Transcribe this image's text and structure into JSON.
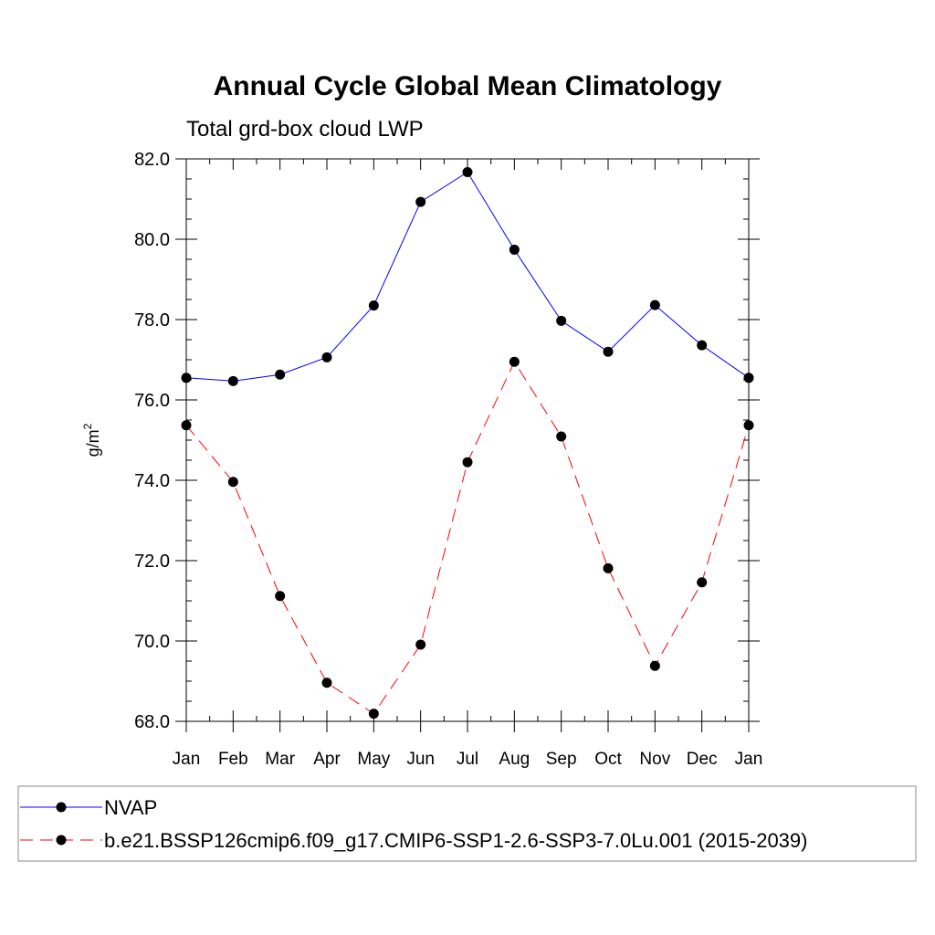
{
  "chart_data": {
    "type": "line",
    "title": "Annual Cycle Global Mean Climatology",
    "subtitle": "Total grd-box cloud LWP",
    "ylabel": "g/m",
    "ylabel_superscript": "2",
    "xlabel": "",
    "categories": [
      "Jan",
      "Feb",
      "Mar",
      "Apr",
      "May",
      "Jun",
      "Jul",
      "Aug",
      "Sep",
      "Oct",
      "Nov",
      "Dec",
      "Jan"
    ],
    "ylim": [
      68.0,
      82.0
    ],
    "yticks": [
      "68.0",
      "70.0",
      "72.0",
      "74.0",
      "76.0",
      "78.0",
      "80.0",
      "82.0"
    ],
    "series": [
      {
        "name": "NVAP",
        "color": "#0000ff",
        "dash": "solid",
        "values": [
          76.55,
          76.47,
          76.63,
          77.06,
          78.35,
          80.93,
          81.67,
          79.74,
          77.97,
          77.2,
          78.36,
          77.36,
          76.55
        ]
      },
      {
        "name": "b.e21.BSSP126cmip6.f09_g17.CMIP6-SSP1-2.6-SSP3-7.0Lu.001 (2015-2039)",
        "color": "#ff0000",
        "dash": "dashed",
        "values": [
          75.37,
          73.96,
          71.12,
          68.96,
          68.19,
          69.91,
          74.45,
          76.95,
          75.09,
          71.81,
          69.38,
          71.46,
          75.37
        ]
      }
    ],
    "legend_position": "bottom"
  }
}
